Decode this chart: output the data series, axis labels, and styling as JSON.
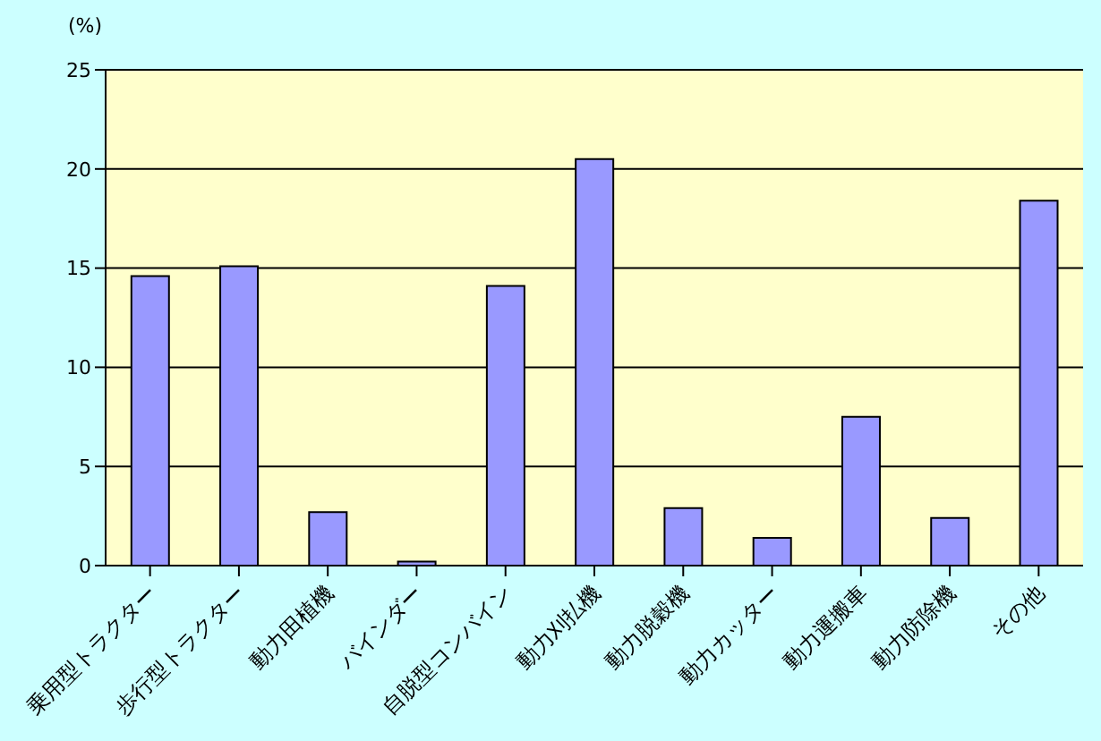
{
  "chart_data": {
    "type": "bar",
    "ylabel": "(%)",
    "categories": [
      "乗用型トラクター",
      "歩行型トラクター",
      "動力田植機",
      "バインダー",
      "自脱型コンバイン",
      "動力刈払機",
      "動力脱穀機",
      "動力カッター",
      "動力運搬車",
      "動力防除機",
      "その他"
    ],
    "values": [
      14.6,
      15.1,
      2.7,
      0.2,
      14.1,
      20.5,
      2.9,
      1.4,
      7.5,
      2.4,
      18.4
    ],
    "color": "#9999ff",
    "ylim": [
      0,
      25
    ],
    "yticks": [
      0,
      5,
      10,
      15,
      20,
      25
    ],
    "grid": "y",
    "legend": false
  }
}
